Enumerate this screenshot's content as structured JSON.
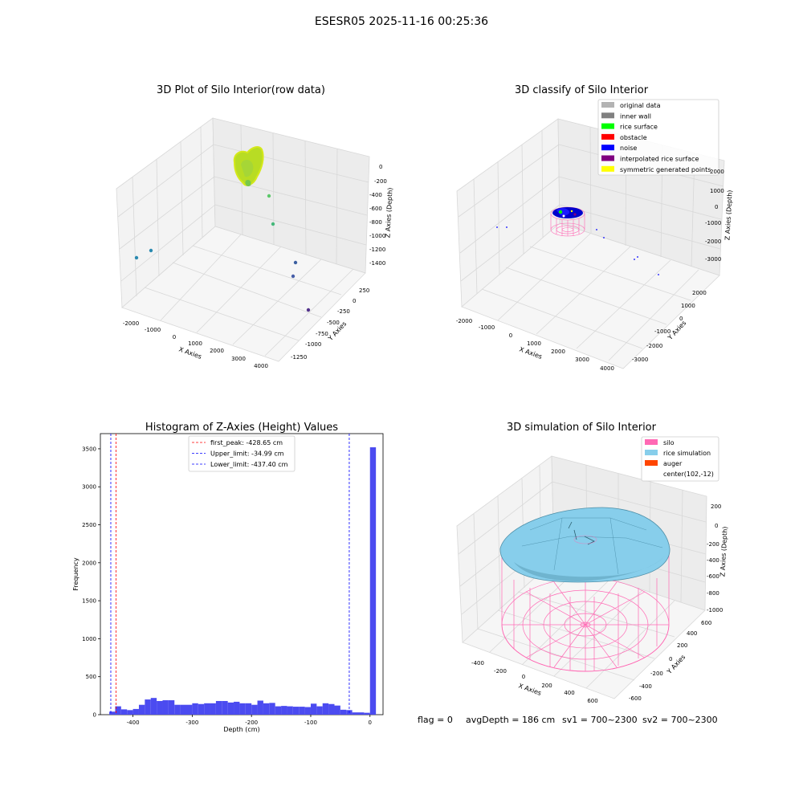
{
  "suptitle": "ESESR05 2025-11-16 00:25:36",
  "footer": {
    "flag": "flag = 0",
    "avg_depth": "avgDepth = 186 cm",
    "sv1": "sv1 = 700~2300",
    "sv2": "sv2 = 700~2300"
  },
  "chart_data": [
    {
      "type": "scatter",
      "title": "3D Plot of Silo Interior(row data)",
      "xlabel": "X Axies",
      "ylabel": "Y Axies",
      "zlabel": "Z Axies (Depth)",
      "xticks": [
        "-2000",
        "-1000",
        "0",
        "1000",
        "2000",
        "3000",
        "4000"
      ],
      "yticks": [
        "-1250",
        "-1000",
        "-750",
        "-500",
        "-250",
        "0",
        "250"
      ],
      "zticks": [
        "-1400",
        "-1200",
        "-1000",
        "-800",
        "-600",
        "-400",
        "-200",
        "0"
      ],
      "colors": {
        "surface": "#b8dc24",
        "outliers": [
          "#5cc86a",
          "#45b87a",
          "#2a8ab0",
          "#2a8ab0",
          "#3b5fa0",
          "#465ea8",
          "#52318a"
        ]
      }
    },
    {
      "type": "scatter",
      "title": "3D classify of Silo Interior",
      "xlabel": "X Axies",
      "ylabel": "Y Axies",
      "zlabel": "Z Axies (Depth)",
      "xticks": [
        "-2000",
        "-1000",
        "0",
        "1000",
        "2000",
        "3000",
        "4000"
      ],
      "yticks": [
        "-3000",
        "-2000",
        "-1000",
        "0",
        "1000",
        "2000"
      ],
      "zticks": [
        "-3000",
        "-2000",
        "-1000",
        "0",
        "1000",
        "2000"
      ],
      "legend_position": "top-right",
      "legend": [
        {
          "label": "original data",
          "color": "#b3b3b3"
        },
        {
          "label": "inner wall",
          "color": "#808080"
        },
        {
          "label": "rice surface",
          "color": "#00ff00"
        },
        {
          "label": "obstacle",
          "color": "#ff0000"
        },
        {
          "label": "noise",
          "color": "#0000ff"
        },
        {
          "label": "interpolated rice surface",
          "color": "#800080"
        },
        {
          "label": "symmetric generated points",
          "color": "#ffff00"
        }
      ]
    },
    {
      "type": "bar",
      "title": "Histogram of Z-Axies (Height) Values",
      "xlabel": "Depth (cm)",
      "ylabel": "Frequency",
      "xlim": [
        -455,
        22
      ],
      "ylim": [
        0,
        3700
      ],
      "xticks": [
        -400,
        -300,
        -200,
        -100,
        0
      ],
      "yticks": [
        0,
        500,
        1000,
        1500,
        2000,
        2500,
        3000,
        3500
      ],
      "bar_color": "#4b4bf0",
      "bin_start": -440,
      "bin_width": 10,
      "values": [
        40,
        110,
        70,
        60,
        75,
        130,
        200,
        220,
        180,
        190,
        190,
        130,
        130,
        130,
        150,
        140,
        150,
        150,
        180,
        180,
        160,
        170,
        150,
        150,
        130,
        185,
        150,
        155,
        110,
        115,
        110,
        105,
        105,
        100,
        145,
        110,
        150,
        140,
        120,
        65,
        60,
        30,
        30,
        25,
        3520
      ],
      "vlines": [
        {
          "label": "first_peak: -428.65 cm",
          "x": -428.65,
          "color": "#ff0000"
        },
        {
          "label": "Upper_limit: -34.99 cm",
          "x": -34.99,
          "color": "#0000ff"
        },
        {
          "label": "Lower_limit: -437.40 cm",
          "x": -437.4,
          "color": "#0000ff"
        }
      ],
      "legend_position": "top-center"
    },
    {
      "type": "surface",
      "title": "3D simulation of Silo Interior",
      "xlabel": "X Axies",
      "ylabel": "Y Axies",
      "zlabel": "Z Axies (Depth)",
      "xticks": [
        "-400",
        "-200",
        "0",
        "200",
        "400",
        "600"
      ],
      "yticks": [
        "-600",
        "-400",
        "-200",
        "0",
        "200",
        "400",
        "600"
      ],
      "zticks": [
        "-1000",
        "-800",
        "-600",
        "-400",
        "-200",
        "0",
        "200"
      ],
      "legend_position": "top-right",
      "legend": [
        {
          "label": "silo",
          "color": "#ff69b4"
        },
        {
          "label": "rice simulation",
          "color": "#87ceeb"
        },
        {
          "label": "auger",
          "color": "#ff4500"
        },
        {
          "label": "center(102,-12)",
          "color": ""
        }
      ]
    }
  ]
}
